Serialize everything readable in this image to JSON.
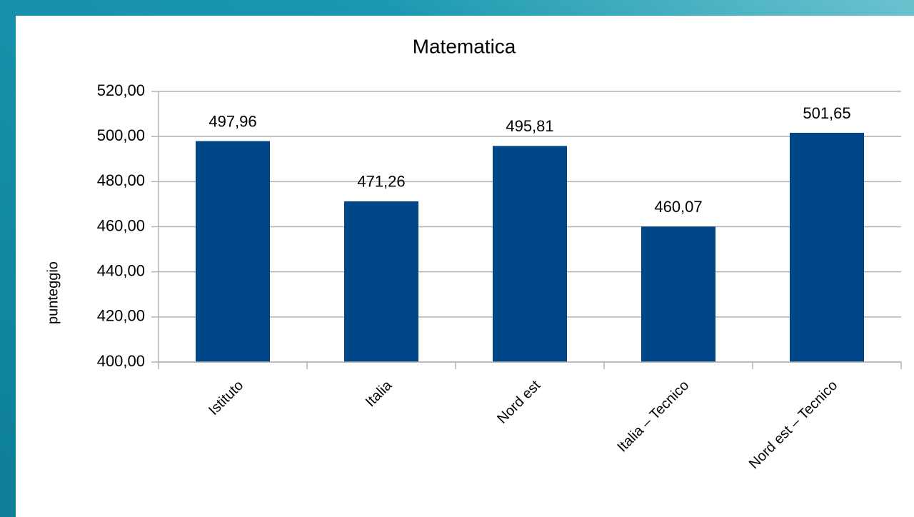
{
  "chart_data": {
    "type": "bar",
    "title": "Matematica",
    "y_label": "punteggio",
    "categories": [
      "Istituto",
      "Italia",
      "Nord est",
      "Italia – Tecnico",
      "Nord est – Tecnico"
    ],
    "values": [
      497.96,
      471.26,
      495.81,
      460.07,
      501.65
    ],
    "value_labels": [
      "497,96",
      "471,26",
      "495,81",
      "460,07",
      "501,65"
    ],
    "color": "#004586",
    "ylim": [
      400,
      520
    ],
    "yticks": [
      {
        "value": 400,
        "label": "400,00"
      },
      {
        "value": 420,
        "label": "420,00"
      },
      {
        "value": 440,
        "label": "440,00"
      },
      {
        "value": 460,
        "label": "460,00"
      },
      {
        "value": 480,
        "label": "480,00"
      },
      {
        "value": 500,
        "label": "500,00"
      },
      {
        "value": 520,
        "label": "520,00"
      }
    ],
    "grid": true
  }
}
